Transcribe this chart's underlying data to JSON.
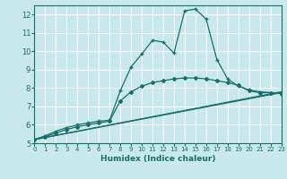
{
  "xlabel": "Humidex (Indice chaleur)",
  "bg_color": "#c8e8ec",
  "line_color": "#1a6e68",
  "ylim": [
    5,
    12.5
  ],
  "xlim": [
    0,
    23
  ],
  "yticks": [
    5,
    6,
    7,
    8,
    9,
    10,
    11,
    12
  ],
  "xticks": [
    0,
    1,
    2,
    3,
    4,
    5,
    6,
    7,
    8,
    9,
    10,
    11,
    12,
    13,
    14,
    15,
    16,
    17,
    18,
    19,
    20,
    21,
    22,
    23
  ],
  "lines": [
    {
      "x": [
        0,
        1,
        2,
        3,
        4,
        5,
        6,
        7,
        8,
        9,
        10,
        11,
        12,
        13,
        14,
        15,
        16,
        17,
        18,
        19,
        20,
        21,
        22,
        23
      ],
      "y": [
        5.2,
        5.4,
        5.65,
        5.85,
        6.0,
        6.1,
        6.2,
        6.25,
        7.85,
        9.15,
        9.85,
        10.6,
        10.5,
        9.9,
        12.2,
        12.3,
        11.75,
        9.55,
        8.5,
        8.1,
        7.9,
        7.8,
        7.75,
        7.7
      ],
      "marker": "+",
      "markersize": 3,
      "lw": 0.9
    },
    {
      "x": [
        0,
        1,
        2,
        3,
        4,
        5,
        6,
        7,
        8,
        9,
        10,
        11,
        12,
        13,
        14,
        15,
        16,
        17,
        18,
        19,
        20,
        21,
        22,
        23
      ],
      "y": [
        5.2,
        5.35,
        5.55,
        5.75,
        5.9,
        6.0,
        6.1,
        6.2,
        7.3,
        7.8,
        8.1,
        8.3,
        8.4,
        8.5,
        8.55,
        8.55,
        8.5,
        8.4,
        8.3,
        8.15,
        7.85,
        7.75,
        7.75,
        7.7
      ],
      "marker": "D",
      "markersize": 2,
      "lw": 0.9
    },
    {
      "x": [
        0,
        23
      ],
      "y": [
        5.2,
        7.8
      ],
      "marker": null,
      "lw": 0.9
    },
    {
      "x": [
        0,
        23
      ],
      "y": [
        5.2,
        7.75
      ],
      "marker": null,
      "lw": 0.9
    }
  ]
}
